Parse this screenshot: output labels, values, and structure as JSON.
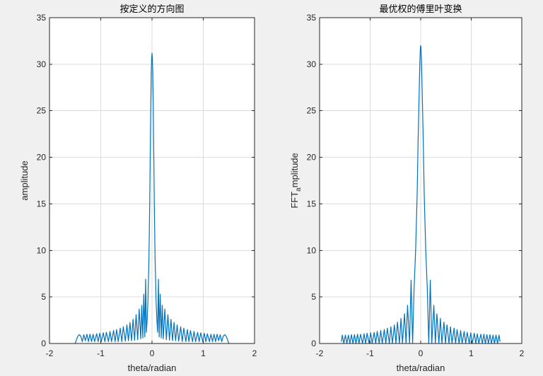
{
  "chart_data": [
    {
      "type": "line",
      "title": "按定义的方向图",
      "xlabel": "theta/radian",
      "ylabel": "amplitude",
      "xlim": [
        -2,
        2
      ],
      "ylim": [
        0,
        35
      ],
      "xticks": [
        "-2",
        "-1",
        "0",
        "1",
        "2"
      ],
      "yticks": [
        "0",
        "5",
        "10",
        "15",
        "20",
        "25",
        "30",
        "35"
      ],
      "grid": true,
      "series": [
        {
          "color": "#0072BD",
          "x": [
            -1.5,
            -1.48,
            -1.45,
            -1.42,
            -1.39,
            -1.36,
            -1.33,
            -1.3,
            -1.27,
            -1.24,
            -1.21,
            -1.18,
            -1.15,
            -1.12,
            -1.08,
            -1.05,
            -1.02,
            -0.99,
            -0.95,
            -0.92,
            -0.89,
            -0.85,
            -0.82,
            -0.79,
            -0.75,
            -0.72,
            -0.69,
            -0.66,
            -0.62,
            -0.59,
            -0.56,
            -0.52,
            -0.49,
            -0.46,
            -0.43,
            -0.4,
            -0.37,
            -0.34,
            -0.31,
            -0.28,
            -0.25,
            -0.22,
            -0.2,
            -0.18,
            -0.16,
            -0.14,
            -0.125,
            -0.11,
            -0.095,
            -0.08,
            -0.06,
            -0.045,
            -0.035,
            -0.025,
            -0.015,
            -0.008,
            0,
            0.008,
            0.015,
            0.025,
            0.035,
            0.045,
            0.06,
            0.08,
            0.095,
            0.11,
            0.125,
            0.14,
            0.16,
            0.18,
            0.2,
            0.22,
            0.25,
            0.28,
            0.31,
            0.34,
            0.37,
            0.4,
            0.43,
            0.46,
            0.49,
            0.52,
            0.56,
            0.59,
            0.62,
            0.66,
            0.69,
            0.72,
            0.75,
            0.79,
            0.82,
            0.85,
            0.89,
            0.92,
            0.95,
            0.99,
            1.02,
            1.05,
            1.08,
            1.12,
            1.15,
            1.18,
            1.21,
            1.24,
            1.27,
            1.3,
            1.33,
            1.36,
            1.39,
            1.42,
            1.45,
            1.48,
            1.5
          ],
          "y": [
            0,
            0.3,
            0.75,
            0.95,
            0.8,
            0.2,
            0.95,
            0.3,
            1.0,
            0.2,
            1.0,
            0.2,
            1.0,
            0.2,
            1.05,
            0.2,
            1.1,
            0.2,
            1.15,
            0.2,
            1.2,
            0.2,
            1.3,
            0.2,
            1.4,
            0.2,
            1.5,
            0.2,
            1.65,
            0.2,
            1.8,
            0.25,
            2.0,
            0.3,
            2.25,
            0.3,
            2.6,
            0.35,
            3.1,
            0.4,
            3.7,
            0.5,
            4.1,
            0.6,
            5.3,
            0.7,
            6.9,
            1.2,
            2.5,
            4.5,
            9,
            15,
            20,
            25,
            29,
            30.5,
            31.2,
            30.5,
            29,
            25,
            20,
            15,
            9,
            4.5,
            2.5,
            1.2,
            6.9,
            0.7,
            5.3,
            0.6,
            4.1,
            0.5,
            3.7,
            0.4,
            3.1,
            0.35,
            2.6,
            0.3,
            2.25,
            0.3,
            2.0,
            0.25,
            1.8,
            0.2,
            1.65,
            0.2,
            1.5,
            0.2,
            1.4,
            0.2,
            1.3,
            0.2,
            1.2,
            0.2,
            1.15,
            0.2,
            1.1,
            0.2,
            1.05,
            0.2,
            1.0,
            0.2,
            1.0,
            0.2,
            1.0,
            0.3,
            0.95,
            0.2,
            0.8,
            0.95,
            0.75,
            0.3,
            0
          ]
        }
      ]
    },
    {
      "type": "line",
      "title": "最优权的傅里叶变换",
      "xlabel": "theta/radian",
      "ylabel": "FFT_amplitude",
      "xlim": [
        -2,
        2
      ],
      "ylim": [
        0,
        35
      ],
      "xticks": [
        "-2",
        "-1",
        "0",
        "1",
        "2"
      ],
      "yticks": [
        "0",
        "5",
        "10",
        "15",
        "20",
        "25",
        "30",
        "35"
      ],
      "grid": true,
      "series": [
        {
          "color": "#0072BD",
          "x": [
            -1.57,
            -1.55,
            -1.52,
            -1.49,
            -1.46,
            -1.43,
            -1.4,
            -1.37,
            -1.34,
            -1.31,
            -1.28,
            -1.25,
            -1.22,
            -1.19,
            -1.15,
            -1.12,
            -1.09,
            -1.06,
            -1.02,
            -0.99,
            -0.96,
            -0.92,
            -0.89,
            -0.86,
            -0.82,
            -0.79,
            -0.76,
            -0.72,
            -0.69,
            -0.66,
            -0.62,
            -0.59,
            -0.56,
            -0.52,
            -0.49,
            -0.46,
            -0.42,
            -0.39,
            -0.36,
            -0.32,
            -0.29,
            -0.26,
            -0.22,
            -0.19,
            -0.16,
            -0.13,
            -0.1,
            -0.07,
            -0.05,
            -0.03,
            -0.015,
            -0.005,
            0,
            0.005,
            0.015,
            0.03,
            0.05,
            0.07,
            0.1,
            0.13,
            0.16,
            0.19,
            0.22,
            0.26,
            0.29,
            0.32,
            0.36,
            0.39,
            0.42,
            0.46,
            0.49,
            0.52,
            0.56,
            0.59,
            0.62,
            0.66,
            0.69,
            0.72,
            0.76,
            0.79,
            0.82,
            0.86,
            0.89,
            0.92,
            0.96,
            0.99,
            1.02,
            1.06,
            1.09,
            1.12,
            1.15,
            1.19,
            1.22,
            1.25,
            1.28,
            1.31,
            1.34,
            1.37,
            1.4,
            1.43,
            1.46,
            1.49,
            1.52,
            1.55,
            1.57
          ],
          "y": [
            0.2,
            0.9,
            0,
            0.9,
            0,
            0.9,
            0,
            0.95,
            0,
            0.95,
            0,
            1.0,
            0,
            1.0,
            0,
            1.05,
            0,
            1.1,
            0,
            1.15,
            0,
            1.2,
            0,
            1.3,
            0,
            1.4,
            0,
            1.5,
            0,
            1.65,
            0,
            1.8,
            0,
            2.0,
            0,
            2.3,
            0,
            2.7,
            0,
            3.2,
            0,
            4.1,
            0,
            6.8,
            0,
            6,
            10,
            16,
            22,
            27,
            30.5,
            31.8,
            32,
            31.8,
            30.5,
            27,
            22,
            16,
            10,
            6,
            0,
            6.8,
            0,
            4.1,
            0,
            3.2,
            0,
            2.7,
            0,
            2.3,
            0,
            2.0,
            0,
            1.8,
            0,
            1.65,
            0,
            1.5,
            0,
            1.4,
            0,
            1.3,
            0,
            1.2,
            0,
            1.15,
            0,
            1.1,
            0,
            1.05,
            0,
            1.0,
            0,
            1.0,
            0,
            0.95,
            0,
            0.95,
            0,
            0.9,
            0,
            0.9,
            0,
            0.9,
            0.2
          ]
        }
      ]
    }
  ]
}
